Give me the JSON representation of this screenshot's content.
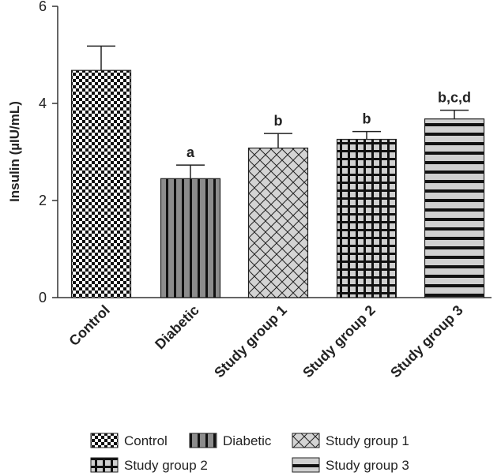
{
  "chart_data": {
    "type": "bar",
    "title": "",
    "xlabel": "",
    "ylabel": "Insulin (µIU/mL)",
    "ylim": [
      0,
      6
    ],
    "yticks": [
      0,
      2,
      4,
      6
    ],
    "categories": [
      "Control",
      "Diabetic",
      "Study group 1",
      "Study group 2",
      "Study group 3"
    ],
    "values": [
      4.68,
      2.45,
      3.08,
      3.26,
      3.68
    ],
    "errors": [
      0.5,
      0.28,
      0.3,
      0.16,
      0.18
    ],
    "significance": [
      "",
      "a",
      "b",
      "b",
      "b,c,d"
    ],
    "legend": [
      "Control",
      "Diabetic",
      "Study group 1",
      "Study group 2",
      "Study group 3"
    ],
    "legend_position": "bottom",
    "grid": false
  }
}
